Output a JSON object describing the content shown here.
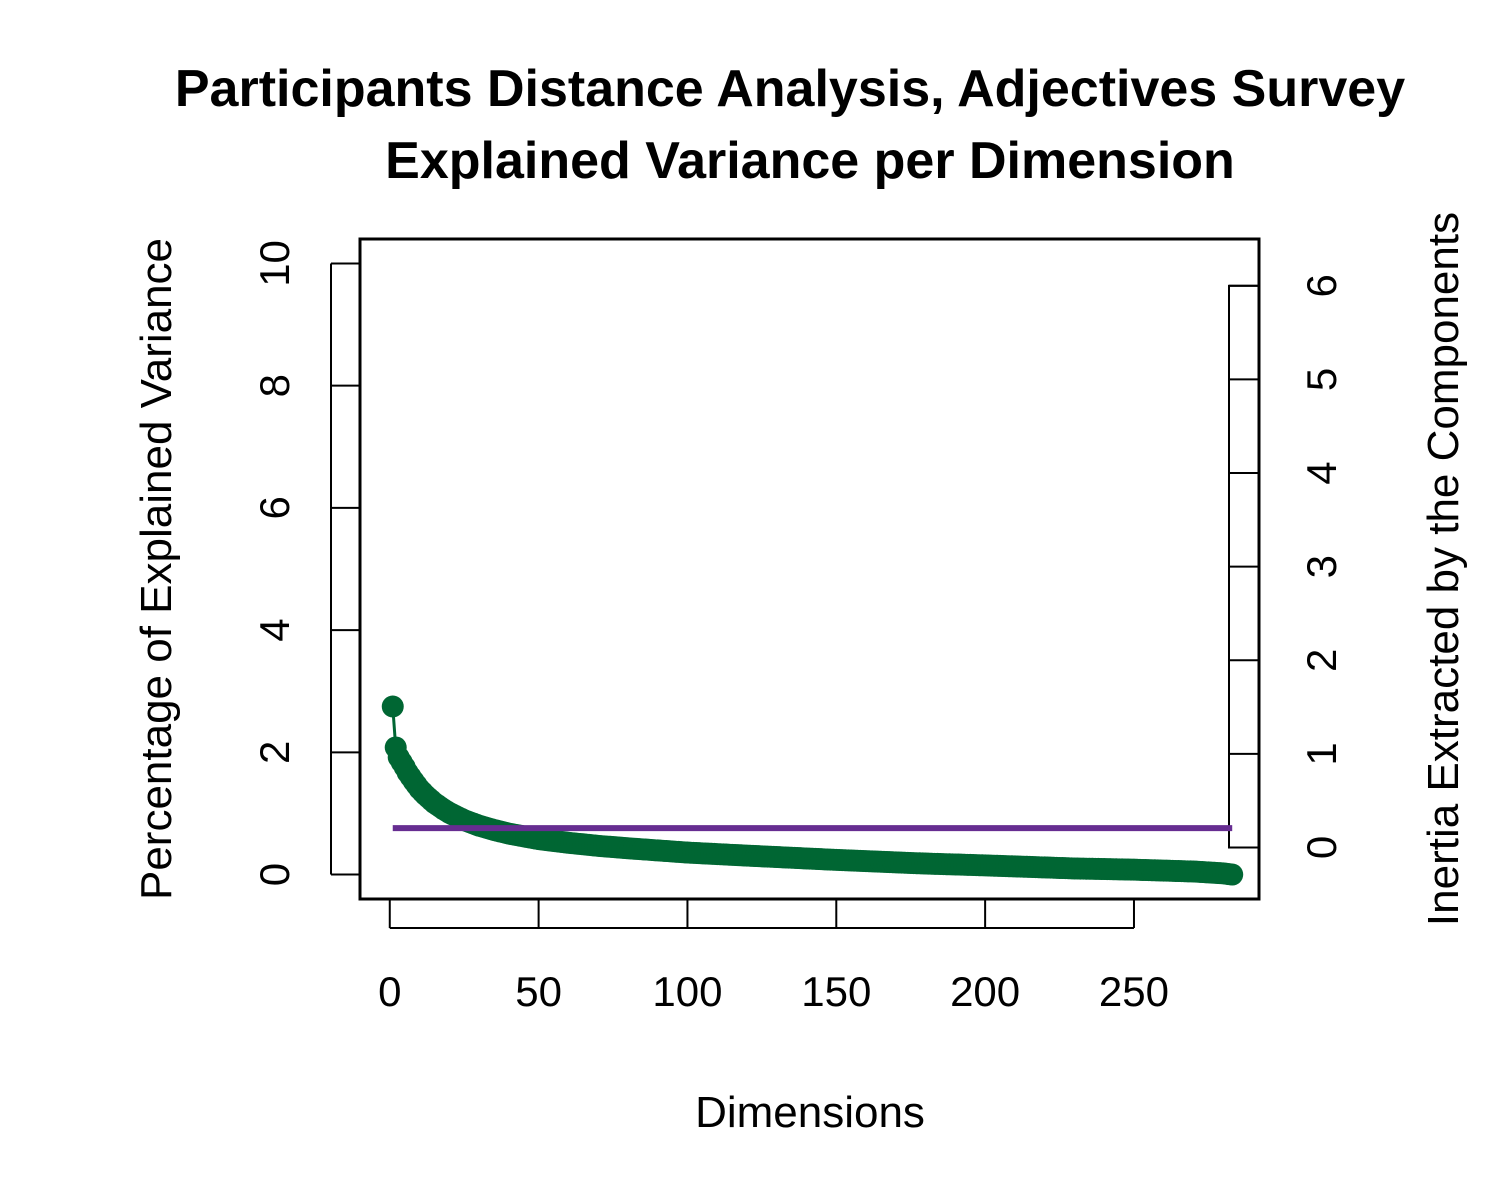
{
  "chart_data": {
    "type": "scatter",
    "title": "Participants Distance Analysis, Adjectives Survey",
    "subtitle": "Explained Variance per Dimension",
    "xlabel": "Dimensions",
    "ylabel": "Percentage of Explained Variance",
    "y2label": "Inertia Extracted by the Components",
    "xlim": [
      -10,
      292
    ],
    "ylim": [
      -0.4,
      10.4
    ],
    "y2lim": [
      -0.55,
      6.5
    ],
    "x_ticks": [
      0,
      50,
      100,
      150,
      200,
      250
    ],
    "y_ticks": [
      0,
      2,
      4,
      6,
      8,
      10
    ],
    "y2_ticks": [
      0,
      1,
      2,
      3,
      4,
      5,
      6
    ],
    "grid": false,
    "series": [
      {
        "type": "scree",
        "color": "#006633",
        "n_points": 283,
        "x": [
          1,
          2,
          3,
          4,
          5,
          6,
          7,
          8,
          10,
          12,
          15,
          18,
          20,
          25,
          30,
          35,
          40,
          50,
          60,
          70,
          80,
          100,
          120,
          150,
          180,
          200,
          230,
          250,
          270,
          280,
          283
        ],
        "y": [
          2.75,
          2.08,
          1.92,
          1.84,
          1.76,
          1.67,
          1.6,
          1.53,
          1.4,
          1.3,
          1.17,
          1.07,
          1.01,
          0.89,
          0.8,
          0.73,
          0.67,
          0.58,
          0.52,
          0.47,
          0.43,
          0.36,
          0.31,
          0.24,
          0.18,
          0.15,
          0.1,
          0.08,
          0.05,
          0.02,
          0.0
        ]
      },
      {
        "type": "hline",
        "color": "#662D91",
        "x": [
          1,
          283
        ],
        "y": [
          0.76,
          0.76
        ]
      }
    ],
    "inertia_scale": {
      "box_range": [
        0,
        6
      ],
      "ticks": [
        0,
        1,
        2,
        3,
        4,
        5,
        6
      ]
    }
  }
}
